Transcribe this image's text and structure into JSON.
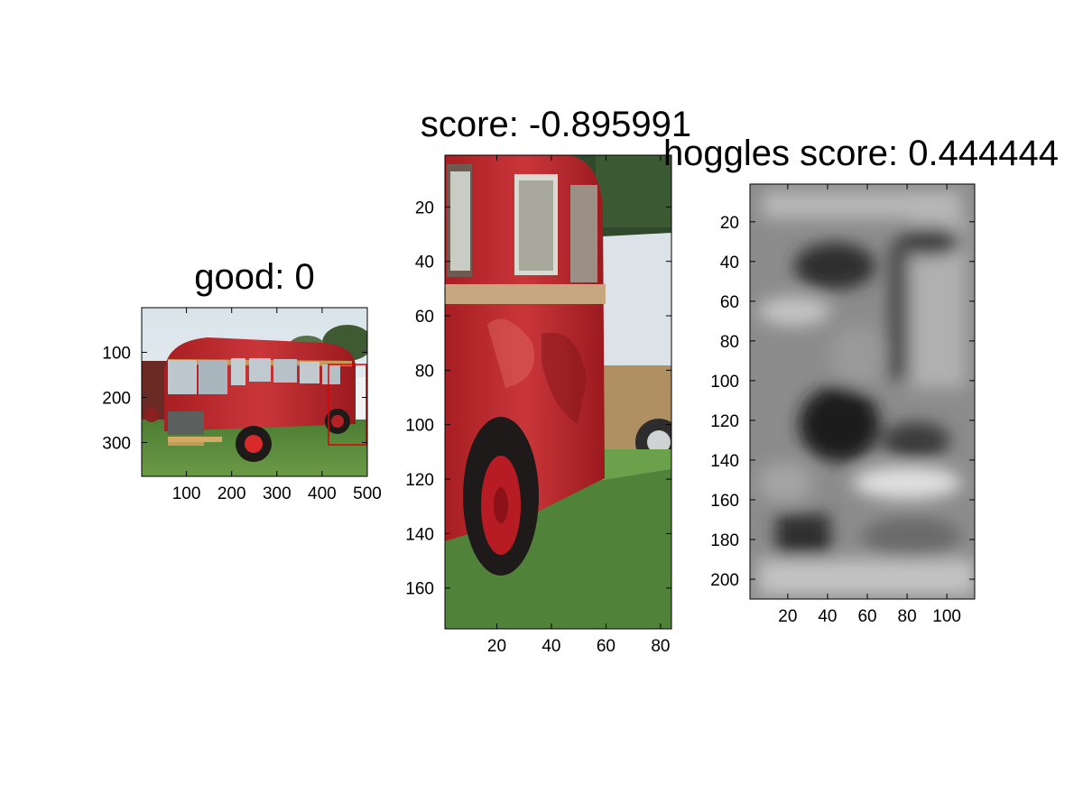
{
  "chart_data": [
    {
      "type": "image",
      "title": "good: 0",
      "xlim": [
        1,
        500
      ],
      "ylim": [
        1,
        375
      ],
      "xticks": [
        "100",
        "200",
        "300",
        "400",
        "500"
      ],
      "yticks": [
        "100",
        "200",
        "300"
      ],
      "image": "red bus on grass",
      "annotation": "red detection box",
      "box_color": "#e00000"
    },
    {
      "type": "image",
      "title": "score: -0.895991",
      "xlim": [
        1,
        84
      ],
      "ylim": [
        1,
        175
      ],
      "xticks": [
        "20",
        "40",
        "60",
        "80"
      ],
      "yticks": [
        "20",
        "40",
        "60",
        "80",
        "100",
        "120",
        "140",
        "160"
      ],
      "image": "crop of red bus rear"
    },
    {
      "type": "heatmap",
      "title": "hoggles score: 0.444444",
      "xlim": [
        1,
        114
      ],
      "ylim": [
        1,
        210
      ],
      "xticks": [
        "20",
        "40",
        "60",
        "80",
        "100"
      ],
      "yticks": [
        "20",
        "40",
        "60",
        "80",
        "100",
        "120",
        "140",
        "160",
        "180",
        "200"
      ],
      "colormap": "gray"
    }
  ]
}
